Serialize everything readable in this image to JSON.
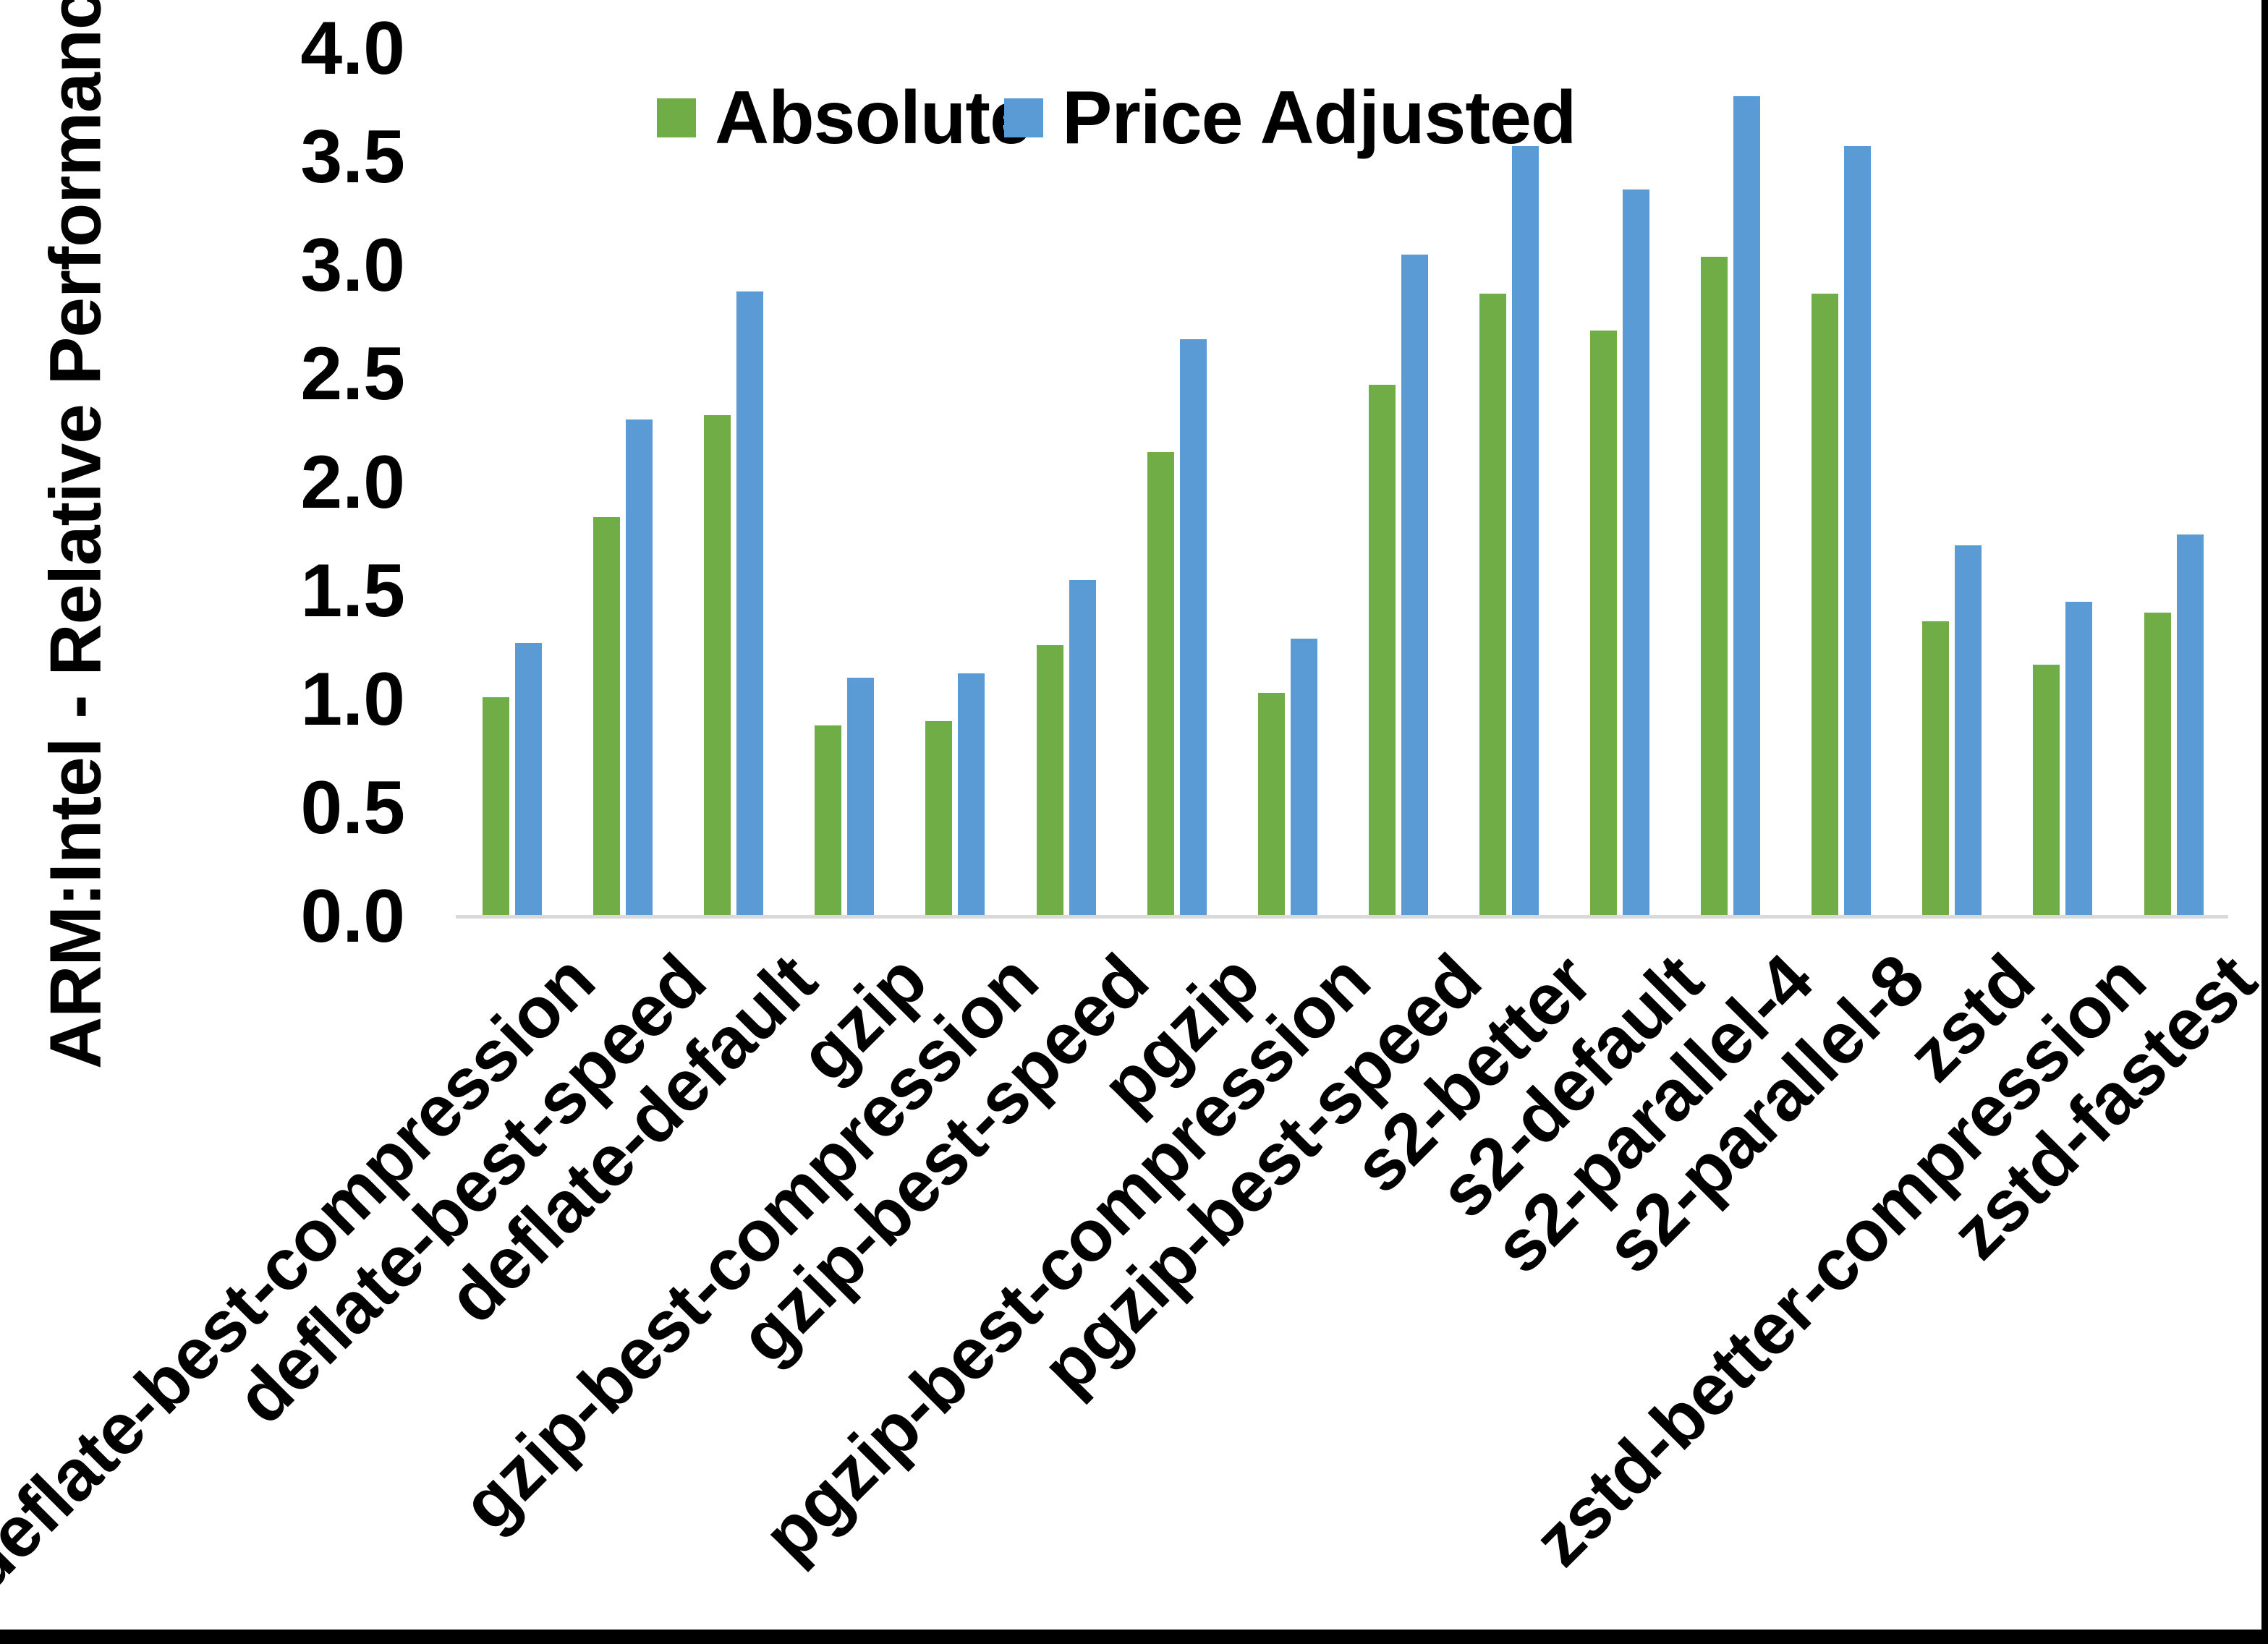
{
  "chart_data": {
    "type": "bar",
    "title": "",
    "ylabel": "ARM:Intel - Relative Performance",
    "xlabel": "",
    "ylim": [
      0.0,
      4.0
    ],
    "ytick_step": 0.5,
    "yticks": [
      "0.0",
      "0.5",
      "1.0",
      "1.5",
      "2.0",
      "2.5",
      "3.0",
      "3.5",
      "4.0"
    ],
    "grid": false,
    "legend_position": "top-center",
    "categories": [
      "deflate-best-compression",
      "deflate-best-speed",
      "deflate-default",
      "gzip",
      "gzip-best-compression",
      "gzip-best-speed",
      "pgzip",
      "pgzip-best-compression",
      "pgzip-best-speed",
      "s2-better",
      "s2-default",
      "s2-parallel-4",
      "s2-parallel-8",
      "zstd",
      "zstd-better-compression",
      "zstd-fastest"
    ],
    "series": [
      {
        "name": "Absolute",
        "color": "#70AD47",
        "values": [
          1.01,
          1.84,
          2.31,
          0.88,
          0.9,
          1.25,
          2.14,
          1.03,
          2.45,
          2.87,
          2.7,
          3.04,
          2.87,
          1.36,
          1.16,
          1.4
        ]
      },
      {
        "name": "Price Adjusted",
        "color": "#5B9BD5",
        "values": [
          1.26,
          2.29,
          2.88,
          1.1,
          1.12,
          1.55,
          2.66,
          1.28,
          3.05,
          3.55,
          3.35,
          3.78,
          3.55,
          1.71,
          1.45,
          1.76
        ]
      }
    ],
    "axis_line_color": "#D9D9D9",
    "frame_color": "#000000"
  }
}
